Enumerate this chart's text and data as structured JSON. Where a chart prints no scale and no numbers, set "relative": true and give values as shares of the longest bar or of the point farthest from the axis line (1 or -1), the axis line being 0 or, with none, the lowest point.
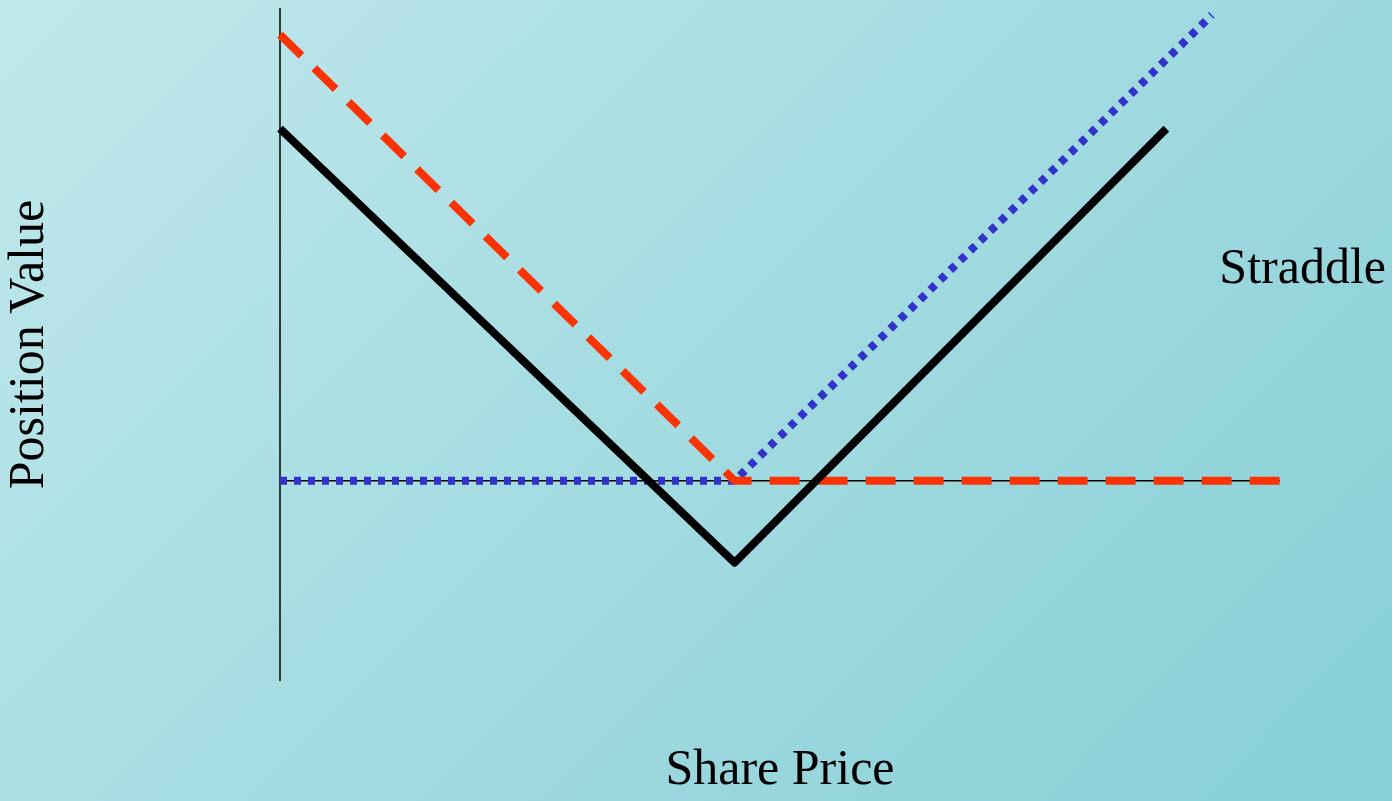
{
  "chart_data": {
    "type": "line",
    "relative": true,
    "xlabel": "Share Price",
    "ylabel": "Position Value",
    "legend": false,
    "grid": false,
    "tick_labels": false,
    "marker": "none",
    "categories": [
      null,
      null,
      null,
      null,
      null,
      null,
      null,
      null,
      null,
      null,
      null,
      null,
      null,
      null,
      null,
      null,
      null,
      null,
      null,
      null,
      null,
      null,
      null,
      null,
      null,
      null,
      null,
      null,
      null,
      null,
      null,
      null,
      null,
      null,
      null,
      null,
      null,
      null,
      null,
      null,
      null,
      null,
      null,
      null,
      null
    ],
    "series": [
      {
        "name": "Straddle",
        "color": "#000000",
        "line_style": "solid",
        "values": [
          0.756,
          null,
          null,
          null,
          null,
          null,
          null,
          null,
          null,
          null,
          null,
          null,
          null,
          null,
          null,
          null,
          null,
          null,
          null,
          null,
          -0.176,
          null,
          null,
          null,
          null,
          null,
          null,
          null,
          null,
          null,
          null,
          null,
          null,
          null,
          null,
          null,
          null,
          null,
          null,
          0.756,
          null,
          null,
          null,
          null,
          null
        ]
      },
      {
        "color": "#ff3300",
        "line_style": "dashed",
        "values": [
          0.958,
          null,
          null,
          null,
          null,
          null,
          null,
          null,
          null,
          null,
          null,
          null,
          null,
          null,
          null,
          null,
          null,
          null,
          null,
          null,
          0,
          null,
          null,
          null,
          null,
          null,
          null,
          null,
          null,
          null,
          null,
          null,
          null,
          null,
          null,
          null,
          null,
          null,
          null,
          null,
          null,
          null,
          null,
          null,
          0
        ]
      },
      {
        "color": "#3333cc",
        "line_style": "dotted",
        "values": [
          0,
          null,
          null,
          null,
          null,
          null,
          null,
          null,
          null,
          null,
          null,
          null,
          null,
          null,
          null,
          null,
          null,
          null,
          null,
          null,
          0,
          null,
          null,
          null,
          null,
          null,
          null,
          null,
          null,
          null,
          null,
          null,
          null,
          null,
          null,
          null,
          null,
          null,
          null,
          null,
          null,
          1,
          null,
          null,
          null
        ]
      }
    ]
  }
}
